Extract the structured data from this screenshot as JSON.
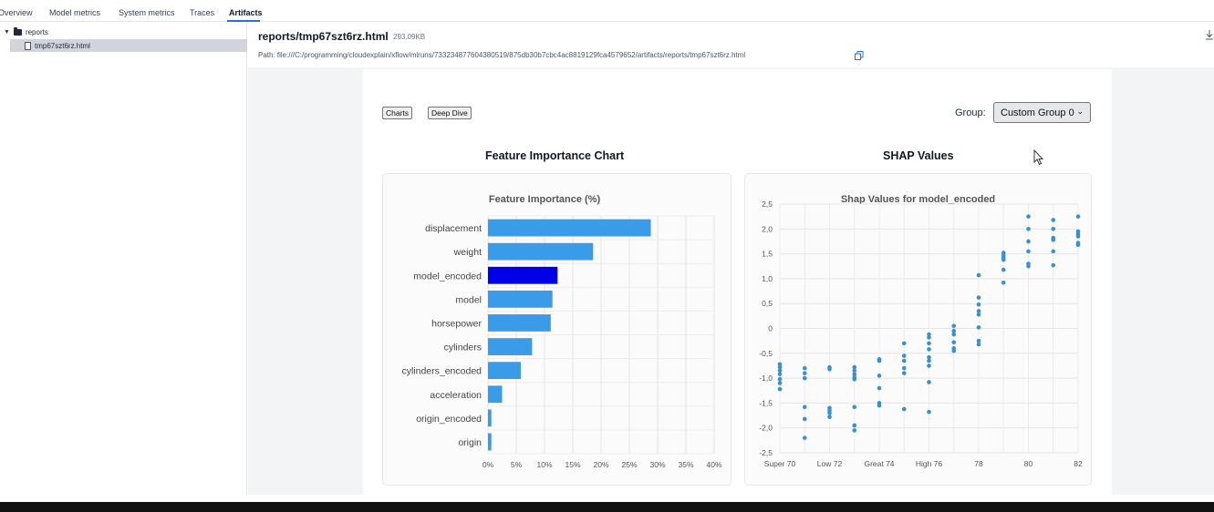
{
  "tabs": [
    {
      "label": "Overview"
    },
    {
      "label": "Model metrics"
    },
    {
      "label": "System metrics"
    },
    {
      "label": "Traces"
    },
    {
      "label": "Artifacts"
    }
  ],
  "sidebar": {
    "folder": "reports",
    "file": "tmp67szt6rz.html"
  },
  "header": {
    "title": "reports/tmp67szt6rz.html",
    "size": "293.09KB",
    "path": "Path: file:///C:/programming/cloudexplain/xflow/mlruns/733234877604380519/875db30b7cbc4ac8819129fca4579652/artifacts/reports/tmp67szt6rz.html"
  },
  "report": {
    "buttons": {
      "charts": "Charts",
      "deep_dive": "Deep Dive"
    },
    "group_label": "Group:",
    "group_value": "Custom Group 0",
    "left_section_title": "Feature Importance Chart",
    "right_section_title": "SHAP Values"
  },
  "chart_data": [
    {
      "type": "bar",
      "orientation": "horizontal",
      "title": "Feature Importance (%)",
      "categories": [
        "displacement",
        "weight",
        "model_encoded",
        "model",
        "horsepower",
        "cylinders",
        "cylinders_encoded",
        "acceleration",
        "origin_encoded",
        "origin"
      ],
      "values": [
        28.8,
        18.6,
        12.3,
        11.4,
        11.1,
        7.8,
        5.8,
        2.5,
        0.6,
        0.6
      ],
      "highlight_index": 2,
      "colors": {
        "bar": "#3a9be8",
        "highlight": "#0000e6"
      },
      "xlim": [
        0,
        40
      ],
      "xticks": [
        "0%",
        "5%",
        "10%",
        "15%",
        "20%",
        "25%",
        "30%",
        "35%",
        "40%"
      ],
      "grid": true
    },
    {
      "type": "scatter",
      "title": "Shap Values for model_encoded",
      "xticks": [
        "Super 70",
        "Low 72",
        "Great 74",
        "High 76",
        "78",
        "80",
        "82"
      ],
      "ylim": [
        -2.5,
        2.5
      ],
      "yticks": [
        "-2,5",
        "-2,0",
        "-1,5",
        "-1,0",
        "-0,5",
        "0",
        "0,5",
        "1,0",
        "1,5",
        "2,0",
        "2,5"
      ],
      "color": "#3a8fd4",
      "grid": true,
      "points": [
        [
          70,
          -0.78
        ],
        [
          70,
          -0.85
        ],
        [
          70,
          -0.92
        ],
        [
          70,
          -1.02
        ],
        [
          70,
          -1.1
        ],
        [
          70,
          -1.22
        ],
        [
          70,
          -0.72
        ],
        [
          71,
          -0.8
        ],
        [
          71,
          -0.9
        ],
        [
          71,
          -1.0
        ],
        [
          71,
          -1.58
        ],
        [
          71,
          -1.82
        ],
        [
          71,
          -2.2
        ],
        [
          72,
          -0.78
        ],
        [
          72,
          -0.82
        ],
        [
          72,
          -1.6
        ],
        [
          72,
          -1.65
        ],
        [
          72,
          -1.7
        ],
        [
          72,
          -1.78
        ],
        [
          73,
          -0.78
        ],
        [
          73,
          -0.85
        ],
        [
          73,
          -0.92
        ],
        [
          73,
          -0.98
        ],
        [
          73,
          -1.02
        ],
        [
          73,
          -1.58
        ],
        [
          73,
          -1.95
        ],
        [
          73,
          -2.05
        ],
        [
          74,
          -0.62
        ],
        [
          74,
          -0.65
        ],
        [
          74,
          -0.95
        ],
        [
          74,
          -1.2
        ],
        [
          74,
          -1.5
        ],
        [
          74,
          -1.55
        ],
        [
          75,
          -0.3
        ],
        [
          75,
          -0.55
        ],
        [
          75,
          -0.65
        ],
        [
          75,
          -0.8
        ],
        [
          75,
          -0.9
        ],
        [
          75,
          -1.62
        ],
        [
          76,
          -0.12
        ],
        [
          76,
          -0.18
        ],
        [
          76,
          -0.3
        ],
        [
          76,
          -0.42
        ],
        [
          76,
          -0.58
        ],
        [
          76,
          -0.65
        ],
        [
          76,
          -0.75
        ],
        [
          76,
          -1.08
        ],
        [
          76,
          -1.68
        ],
        [
          77,
          0.05
        ],
        [
          77,
          -0.05
        ],
        [
          77,
          -0.12
        ],
        [
          77,
          -0.28
        ],
        [
          77,
          -0.4
        ],
        [
          77,
          -0.45
        ],
        [
          78,
          1.07
        ],
        [
          78,
          0.62
        ],
        [
          78,
          0.48
        ],
        [
          78,
          0.35
        ],
        [
          78,
          0.28
        ],
        [
          78,
          0.02
        ],
        [
          78,
          -0.25
        ],
        [
          78,
          -0.32
        ],
        [
          79,
          1.52
        ],
        [
          79,
          1.47
        ],
        [
          79,
          1.42
        ],
        [
          79,
          1.38
        ],
        [
          79,
          1.18
        ],
        [
          79,
          0.92
        ],
        [
          80,
          2.25
        ],
        [
          80,
          2.0
        ],
        [
          80,
          1.75
        ],
        [
          80,
          1.55
        ],
        [
          80,
          1.3
        ],
        [
          80,
          1.25
        ],
        [
          81,
          2.18
        ],
        [
          81,
          2.0
        ],
        [
          81,
          1.82
        ],
        [
          81,
          1.78
        ],
        [
          81,
          1.55
        ],
        [
          81,
          1.27
        ],
        [
          82,
          2.25
        ],
        [
          82,
          1.95
        ],
        [
          82,
          1.9
        ],
        [
          82,
          1.85
        ],
        [
          82,
          1.72
        ],
        [
          82,
          1.68
        ]
      ]
    }
  ]
}
